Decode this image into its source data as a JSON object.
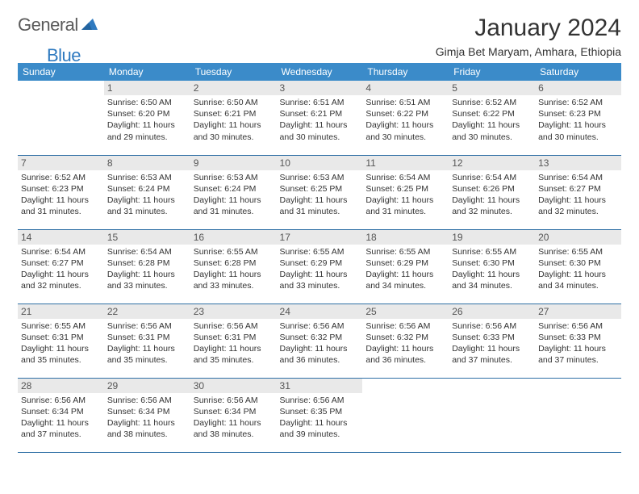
{
  "logo": {
    "word1": "General",
    "word2": "Blue"
  },
  "brand_color": "#2f7ac0",
  "header_bg_color": "#3b8bc9",
  "cell_border_color": "#2f6fa5",
  "daynum_bg_color": "#e9e9e9",
  "title": "January 2024",
  "location": "Gimja Bet Maryam, Amhara, Ethiopia",
  "day_headers": [
    "Sunday",
    "Monday",
    "Tuesday",
    "Wednesday",
    "Thursday",
    "Friday",
    "Saturday"
  ],
  "weeks": [
    [
      {
        "n": "",
        "sr": "",
        "ss": "",
        "dl": ""
      },
      {
        "n": "1",
        "sr": "6:50 AM",
        "ss": "6:20 PM",
        "dl": "11 hours and 29 minutes."
      },
      {
        "n": "2",
        "sr": "6:50 AM",
        "ss": "6:21 PM",
        "dl": "11 hours and 30 minutes."
      },
      {
        "n": "3",
        "sr": "6:51 AM",
        "ss": "6:21 PM",
        "dl": "11 hours and 30 minutes."
      },
      {
        "n": "4",
        "sr": "6:51 AM",
        "ss": "6:22 PM",
        "dl": "11 hours and 30 minutes."
      },
      {
        "n": "5",
        "sr": "6:52 AM",
        "ss": "6:22 PM",
        "dl": "11 hours and 30 minutes."
      },
      {
        "n": "6",
        "sr": "6:52 AM",
        "ss": "6:23 PM",
        "dl": "11 hours and 30 minutes."
      }
    ],
    [
      {
        "n": "7",
        "sr": "6:52 AM",
        "ss": "6:23 PM",
        "dl": "11 hours and 31 minutes."
      },
      {
        "n": "8",
        "sr": "6:53 AM",
        "ss": "6:24 PM",
        "dl": "11 hours and 31 minutes."
      },
      {
        "n": "9",
        "sr": "6:53 AM",
        "ss": "6:24 PM",
        "dl": "11 hours and 31 minutes."
      },
      {
        "n": "10",
        "sr": "6:53 AM",
        "ss": "6:25 PM",
        "dl": "11 hours and 31 minutes."
      },
      {
        "n": "11",
        "sr": "6:54 AM",
        "ss": "6:25 PM",
        "dl": "11 hours and 31 minutes."
      },
      {
        "n": "12",
        "sr": "6:54 AM",
        "ss": "6:26 PM",
        "dl": "11 hours and 32 minutes."
      },
      {
        "n": "13",
        "sr": "6:54 AM",
        "ss": "6:27 PM",
        "dl": "11 hours and 32 minutes."
      }
    ],
    [
      {
        "n": "14",
        "sr": "6:54 AM",
        "ss": "6:27 PM",
        "dl": "11 hours and 32 minutes."
      },
      {
        "n": "15",
        "sr": "6:54 AM",
        "ss": "6:28 PM",
        "dl": "11 hours and 33 minutes."
      },
      {
        "n": "16",
        "sr": "6:55 AM",
        "ss": "6:28 PM",
        "dl": "11 hours and 33 minutes."
      },
      {
        "n": "17",
        "sr": "6:55 AM",
        "ss": "6:29 PM",
        "dl": "11 hours and 33 minutes."
      },
      {
        "n": "18",
        "sr": "6:55 AM",
        "ss": "6:29 PM",
        "dl": "11 hours and 34 minutes."
      },
      {
        "n": "19",
        "sr": "6:55 AM",
        "ss": "6:30 PM",
        "dl": "11 hours and 34 minutes."
      },
      {
        "n": "20",
        "sr": "6:55 AM",
        "ss": "6:30 PM",
        "dl": "11 hours and 34 minutes."
      }
    ],
    [
      {
        "n": "21",
        "sr": "6:55 AM",
        "ss": "6:31 PM",
        "dl": "11 hours and 35 minutes."
      },
      {
        "n": "22",
        "sr": "6:56 AM",
        "ss": "6:31 PM",
        "dl": "11 hours and 35 minutes."
      },
      {
        "n": "23",
        "sr": "6:56 AM",
        "ss": "6:31 PM",
        "dl": "11 hours and 35 minutes."
      },
      {
        "n": "24",
        "sr": "6:56 AM",
        "ss": "6:32 PM",
        "dl": "11 hours and 36 minutes."
      },
      {
        "n": "25",
        "sr": "6:56 AM",
        "ss": "6:32 PM",
        "dl": "11 hours and 36 minutes."
      },
      {
        "n": "26",
        "sr": "6:56 AM",
        "ss": "6:33 PM",
        "dl": "11 hours and 37 minutes."
      },
      {
        "n": "27",
        "sr": "6:56 AM",
        "ss": "6:33 PM",
        "dl": "11 hours and 37 minutes."
      }
    ],
    [
      {
        "n": "28",
        "sr": "6:56 AM",
        "ss": "6:34 PM",
        "dl": "11 hours and 37 minutes."
      },
      {
        "n": "29",
        "sr": "6:56 AM",
        "ss": "6:34 PM",
        "dl": "11 hours and 38 minutes."
      },
      {
        "n": "30",
        "sr": "6:56 AM",
        "ss": "6:34 PM",
        "dl": "11 hours and 38 minutes."
      },
      {
        "n": "31",
        "sr": "6:56 AM",
        "ss": "6:35 PM",
        "dl": "11 hours and 39 minutes."
      },
      {
        "n": "",
        "sr": "",
        "ss": "",
        "dl": ""
      },
      {
        "n": "",
        "sr": "",
        "ss": "",
        "dl": ""
      },
      {
        "n": "",
        "sr": "",
        "ss": "",
        "dl": ""
      }
    ]
  ],
  "labels": {
    "sunrise": "Sunrise:",
    "sunset": "Sunset:",
    "daylight": "Daylight:"
  }
}
